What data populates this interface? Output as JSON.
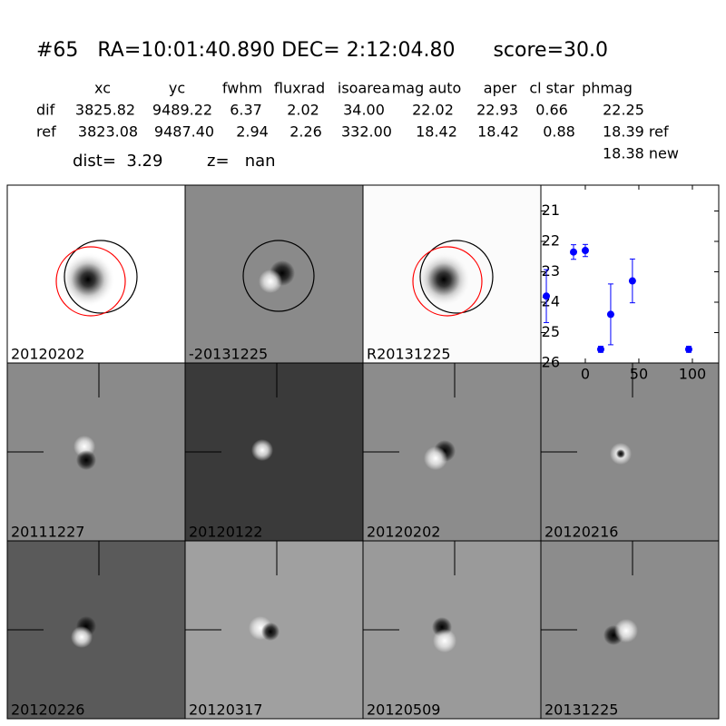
{
  "header": {
    "title": "#65   RA=10:01:40.890 DEC= 2:12:04.80      score=30.0",
    "columns": [
      "xc",
      "yc",
      "fwhm",
      "fluxrad",
      "isoarea",
      "mag auto",
      "aper",
      "cl star",
      "phmag"
    ],
    "rows": [
      {
        "label": "dif",
        "cells": [
          "3825.82",
          "9489.22",
          "6.37",
          "2.02",
          "34.00",
          "22.02",
          "22.93",
          "0.66",
          "22.25"
        ]
      },
      {
        "label": "ref",
        "cells": [
          "3823.08",
          "9487.40",
          "2.94",
          "2.26",
          "332.00",
          "18.42",
          "18.42",
          "0.88",
          "18.39 ref"
        ]
      }
    ],
    "phmag_new": "18.38 new",
    "dist": "dist=  3.29",
    "z": "z=   nan"
  },
  "panels": [
    {
      "label": "20120202"
    },
    {
      "label": "-20131225"
    },
    {
      "label": "R20131225"
    },
    {
      "label": "20111227"
    },
    {
      "label": "20120122"
    },
    {
      "label": "20120202",
      "color": "#ff0000"
    },
    {
      "label": "20120216"
    },
    {
      "label": "20120226"
    },
    {
      "label": "20120317"
    },
    {
      "label": "20120509"
    },
    {
      "label": "20131225"
    }
  ],
  "chart_data": {
    "type": "scatter",
    "x": [
      -36.4,
      -11,
      0,
      14.4,
      23.7,
      44,
      96.6
    ],
    "values": [
      23.8,
      22.35,
      22.3,
      25.55,
      24.4,
      23.3,
      25.55
    ],
    "errors": [
      0.87,
      0.24,
      0.2,
      0.1,
      1.0,
      0.72,
      0.1
    ],
    "xlim": [
      -41.5,
      124.6
    ],
    "ylim": [
      26,
      20.15
    ],
    "xticks": [
      0,
      50,
      100
    ],
    "yticks": [
      21,
      22,
      23,
      24,
      25,
      26
    ],
    "color": "#0000ff"
  }
}
